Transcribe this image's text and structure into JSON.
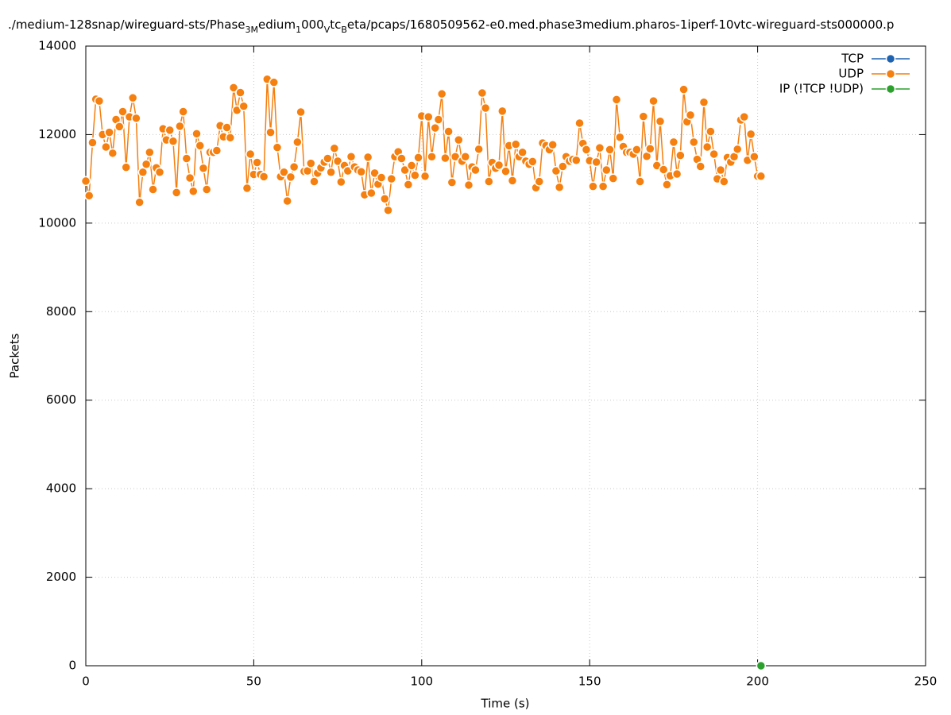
{
  "chart_data": {
    "type": "line",
    "title": [
      "./medium-128snap/wireguard-sts/Phase",
      "3M",
      "edium",
      "1",
      "000",
      "V",
      "tc",
      "B",
      "eta/pcaps/1680509562-e0.med.phase3medium.pharos-1iperf-10vtc-wireguard-sts000000.p"
    ],
    "x_label": "Time (s)",
    "y_label": "Packets",
    "xlim": [
      0,
      250
    ],
    "xticks": [
      0,
      50,
      100,
      150,
      200,
      250
    ],
    "ylim": [
      0,
      14000
    ],
    "yticks": [
      0,
      2000,
      4000,
      6000,
      8000,
      10000,
      12000,
      14000
    ],
    "grid": true,
    "legend": "top-right",
    "series": [
      {
        "name": "TCP",
        "color": "#1f63b0",
        "x": [],
        "values": []
      },
      {
        "name": "UDP",
        "color": "#f57f0f",
        "x": [
          0,
          1,
          2,
          3,
          4,
          5,
          6,
          7,
          8,
          9,
          10,
          11,
          12,
          13,
          14,
          15,
          16,
          17,
          18,
          19,
          20,
          21,
          22,
          23,
          24,
          25,
          26,
          27,
          28,
          29,
          30,
          31,
          32,
          33,
          34,
          35,
          36,
          37,
          38,
          39,
          40,
          41,
          42,
          43,
          44,
          45,
          46,
          47,
          48,
          49,
          50,
          51,
          52,
          53,
          54,
          55,
          56,
          57,
          58,
          59,
          60,
          61,
          62,
          63,
          64,
          65,
          66,
          67,
          68,
          69,
          70,
          71,
          72,
          73,
          74,
          75,
          76,
          77,
          78,
          79,
          80,
          81,
          82,
          83,
          84,
          85,
          86,
          87,
          88,
          89,
          90,
          91,
          92,
          93,
          94,
          95,
          96,
          97,
          98,
          99,
          100,
          101,
          102,
          103,
          104,
          105,
          106,
          107,
          108,
          109,
          110,
          111,
          112,
          113,
          114,
          115,
          116,
          117,
          118,
          119,
          120,
          121,
          122,
          123,
          124,
          125,
          126,
          127,
          128,
          129,
          130,
          131,
          132,
          133,
          134,
          135,
          136,
          137,
          138,
          139,
          140,
          141,
          142,
          143,
          144,
          145,
          146,
          147,
          148,
          149,
          150,
          151,
          152,
          153,
          154,
          155,
          156,
          157,
          158,
          159,
          160,
          161,
          162,
          163,
          164,
          165,
          166,
          167,
          168,
          169,
          170,
          171,
          172,
          173,
          174,
          175,
          176,
          177,
          178,
          179,
          180,
          181,
          182,
          183,
          184,
          185,
          186,
          187,
          188,
          189,
          190,
          191,
          192,
          193,
          194,
          195,
          196,
          197,
          198,
          199,
          200,
          201
        ],
        "values": [
          10950,
          10620,
          11820,
          12800,
          12760,
          12000,
          11720,
          12050,
          11580,
          12340,
          12180,
          12520,
          11260,
          12400,
          12830,
          12370,
          10470,
          11150,
          11330,
          11600,
          10760,
          11250,
          11150,
          12130,
          11880,
          12100,
          11850,
          10690,
          12190,
          12520,
          11460,
          11020,
          10720,
          12020,
          11750,
          11240,
          10760,
          11600,
          11600,
          11640,
          12200,
          11950,
          12160,
          11930,
          13060,
          12550,
          12950,
          12640,
          10790,
          11560,
          11100,
          11370,
          11100,
          11050,
          13250,
          12050,
          13180,
          11710,
          11050,
          11150,
          10500,
          11040,
          11270,
          11830,
          12510,
          11170,
          11180,
          11350,
          10940,
          11130,
          11250,
          11380,
          11460,
          11150,
          11690,
          11400,
          10930,
          11300,
          11180,
          11500,
          11270,
          11200,
          11160,
          10640,
          11490,
          10680,
          11130,
          10880,
          11030,
          10550,
          10290,
          11000,
          11500,
          11610,
          11460,
          11200,
          10870,
          11300,
          11080,
          11480,
          12420,
          11060,
          12400,
          11500,
          12150,
          12340,
          12920,
          11470,
          12070,
          10920,
          11500,
          11880,
          11400,
          11500,
          10860,
          11270,
          11200,
          11670,
          12940,
          12600,
          10940,
          11370,
          11240,
          11310,
          12530,
          11170,
          11750,
          10960,
          11780,
          11500,
          11600,
          11400,
          11330,
          11390,
          10800,
          10940,
          11810,
          11750,
          11660,
          11770,
          11180,
          10810,
          11280,
          11500,
          11400,
          11440,
          11420,
          12260,
          11800,
          11660,
          11410,
          10830,
          11380,
          11700,
          10830,
          11200,
          11660,
          11010,
          12790,
          11940,
          11730,
          11600,
          11600,
          11560,
          11660,
          10940,
          12410,
          11510,
          11680,
          12760,
          11300,
          12300,
          11210,
          10870,
          11070,
          11830,
          11110,
          11530,
          13020,
          12290,
          12440,
          11830,
          11440,
          11280,
          12730,
          11720,
          12070,
          11560,
          11000,
          11200,
          10940,
          11480,
          11380,
          11500,
          11670,
          12330,
          12400,
          11420,
          12010,
          11500,
          11060,
          11060
        ]
      },
      {
        "name": "IP (!TCP  !UDP)",
        "color": "#2ca02c",
        "x": [
          201
        ],
        "values": [
          0
        ]
      }
    ]
  }
}
